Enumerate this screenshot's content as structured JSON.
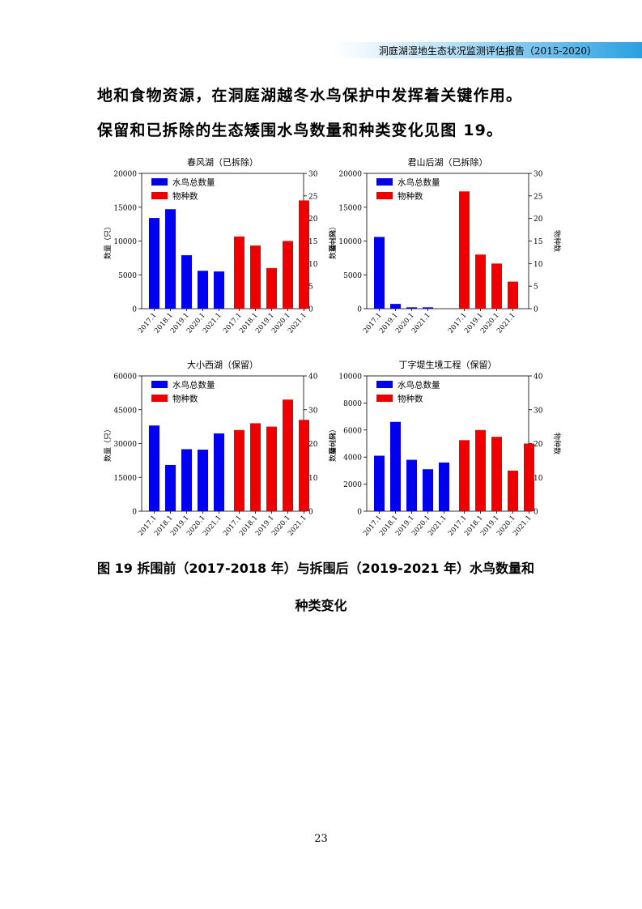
{
  "header": {
    "title": "洞庭湖湿地生态状况监测评估报告（2015-2020）"
  },
  "body_text": {
    "line1": "地和食物资源，在洞庭湖越冬水鸟保护中发挥着关键作用。",
    "line2": "保留和已拆除的生态矮围水鸟数量和种类变化见图 19。"
  },
  "figure": {
    "caption_line1": "图 19  拆围前（2017-2018 年）与拆围后（2019-2021 年）水鸟数量和",
    "caption_line2": "种类变化"
  },
  "page_number": "23",
  "colors": {
    "count_bar": "#0000ee",
    "species_bar": "#ee0000",
    "header_accent": "#2aa0e0"
  },
  "chart_data": [
    {
      "type": "bar",
      "title": "春风湖（已拆除）",
      "ylabel": "数量（只）",
      "y2label": "物种数",
      "legend": [
        "水鸟总数量",
        "物种数"
      ],
      "legend_position": "top-left",
      "ylim": [
        0,
        20000
      ],
      "yticks": [
        0,
        5000,
        10000,
        15000,
        20000
      ],
      "y2lim": [
        0,
        30
      ],
      "y2ticks": [
        0,
        5,
        10,
        15,
        20,
        25,
        30
      ],
      "series": [
        {
          "name": "水鸟总数量",
          "axis": "left",
          "categories": [
            "2017.1",
            "2018.1",
            "2019.1",
            "2020.1",
            "2021.1"
          ],
          "values": [
            13400,
            14700,
            7900,
            5600,
            5500
          ]
        },
        {
          "name": "物种数",
          "axis": "right",
          "categories": [
            "2017.1",
            "2018.1",
            "2019.1",
            "2020.1",
            "2021.1"
          ],
          "values": [
            16,
            14,
            9,
            15,
            24
          ]
        }
      ]
    },
    {
      "type": "bar",
      "title": "君山后湖（已拆除）",
      "ylabel": "数量（只）",
      "y2label": "物种数",
      "legend": [
        "水鸟总数量",
        "物种数"
      ],
      "legend_position": "top-left",
      "ylim": [
        0,
        20000
      ],
      "yticks": [
        0,
        5000,
        10000,
        15000,
        20000
      ],
      "y2lim": [
        0,
        30
      ],
      "y2ticks": [
        0,
        5,
        10,
        15,
        20,
        25,
        30
      ],
      "series": [
        {
          "name": "水鸟总数量",
          "axis": "left",
          "categories": [
            "2017.1",
            "2019.1",
            "2020.1",
            "2021.1"
          ],
          "values": [
            10600,
            700,
            200,
            200
          ]
        },
        {
          "name": "物种数",
          "axis": "right",
          "categories": [
            "2017.1",
            "2019.1",
            "2020.1",
            "2021.1"
          ],
          "values": [
            26,
            12,
            10,
            6
          ]
        }
      ]
    },
    {
      "type": "bar",
      "title": "大小西湖（保留）",
      "ylabel": "数量（只）",
      "y2label": "物种数",
      "legend": [
        "水鸟总数量",
        "物种数"
      ],
      "legend_position": "top-left",
      "ylim": [
        0,
        60000
      ],
      "yticks": [
        0,
        15000,
        30000,
        45000,
        60000
      ],
      "y2lim": [
        0,
        40
      ],
      "y2ticks": [
        0,
        10,
        20,
        30,
        40
      ],
      "series": [
        {
          "name": "水鸟总数量",
          "axis": "left",
          "categories": [
            "2017.1",
            "2018.1",
            "2019.1",
            "2020.1",
            "2021.1"
          ],
          "values": [
            38000,
            20500,
            27500,
            27300,
            34500
          ]
        },
        {
          "name": "物种数",
          "axis": "right",
          "categories": [
            "2017.1",
            "2018.1",
            "2019.1",
            "2020.1",
            "2021.1"
          ],
          "values": [
            24,
            26,
            25,
            33,
            27
          ]
        }
      ]
    },
    {
      "type": "bar",
      "title": "丁字堤生境工程（保留）",
      "ylabel": "数量（只）",
      "y2label": "物种数",
      "legend": [
        "水鸟总数量",
        "物种数"
      ],
      "legend_position": "top-left",
      "ylim": [
        0,
        10000
      ],
      "yticks": [
        0,
        2000,
        4000,
        6000,
        8000,
        10000
      ],
      "y2lim": [
        0,
        40
      ],
      "y2ticks": [
        0,
        10,
        20,
        30,
        40
      ],
      "series": [
        {
          "name": "水鸟总数量",
          "axis": "left",
          "categories": [
            "2017.1",
            "2018.1",
            "2019.1",
            "2020.1",
            "2021.1"
          ],
          "values": [
            4100,
            6600,
            3800,
            3100,
            3600
          ]
        },
        {
          "name": "物种数",
          "axis": "right",
          "categories": [
            "2017.1",
            "2018.1",
            "2019.1",
            "2020.1",
            "2021.1"
          ],
          "values": [
            21,
            24,
            22,
            12,
            20
          ]
        }
      ]
    }
  ]
}
